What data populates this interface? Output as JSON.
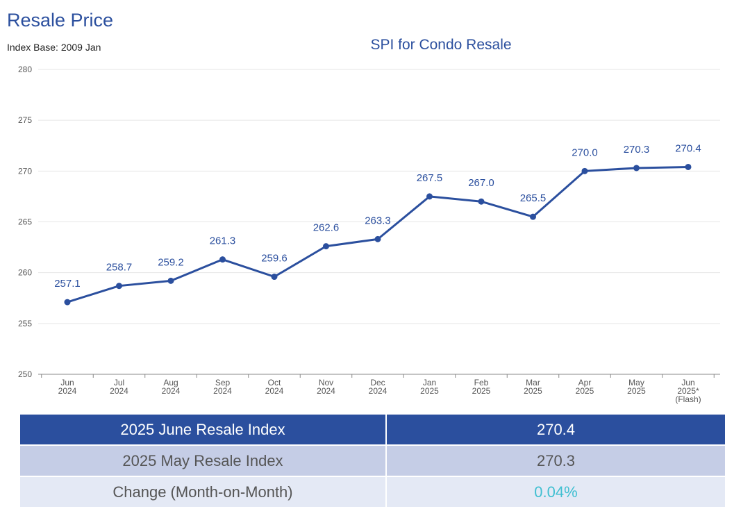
{
  "header": {
    "heading": "Resale Price",
    "index_base": "Index Base: 2009 Jan"
  },
  "chart_data": {
    "type": "line",
    "title": "SPI for Condo Resale",
    "categories": [
      [
        "Jun",
        "2024"
      ],
      [
        "Jul",
        "2024"
      ],
      [
        "Aug",
        "2024"
      ],
      [
        "Sep",
        "2024"
      ],
      [
        "Oct",
        "2024"
      ],
      [
        "Nov",
        "2024"
      ],
      [
        "Dec",
        "2024"
      ],
      [
        "Jan",
        "2025"
      ],
      [
        "Feb",
        "2025"
      ],
      [
        "Mar",
        "2025"
      ],
      [
        "Apr",
        "2025"
      ],
      [
        "May",
        "2025"
      ],
      [
        "Jun",
        "2025*",
        "(Flash)"
      ]
    ],
    "values": [
      257.1,
      258.7,
      259.2,
      261.3,
      259.6,
      262.6,
      263.3,
      267.5,
      267.0,
      265.5,
      270.0,
      270.3,
      270.4
    ],
    "data_labels": [
      "257.1",
      "258.7",
      "259.2",
      "261.3",
      "259.6",
      "262.6",
      "263.3",
      "267.5",
      "267.0",
      "265.5",
      "270.0",
      "270.3",
      "270.4"
    ],
    "ylim": [
      250,
      280
    ],
    "yticks": [
      250,
      255,
      260,
      265,
      270,
      275,
      280
    ],
    "grid": true,
    "color": "#2b4f9e",
    "xlabel": "",
    "ylabel": ""
  },
  "summary_table": {
    "rows": [
      {
        "label": "2025 June Resale Index",
        "value": "270.4"
      },
      {
        "label": "2025 May Resale Index",
        "value": "270.3"
      },
      {
        "label": "Change (Month-on-Month)",
        "value": "0.04%"
      }
    ],
    "colors": {
      "header_row": "#2b4f9e",
      "second_row": "#c5cde6",
      "third_row": "#e4e9f5",
      "change_value": "#3fbfd1"
    }
  }
}
